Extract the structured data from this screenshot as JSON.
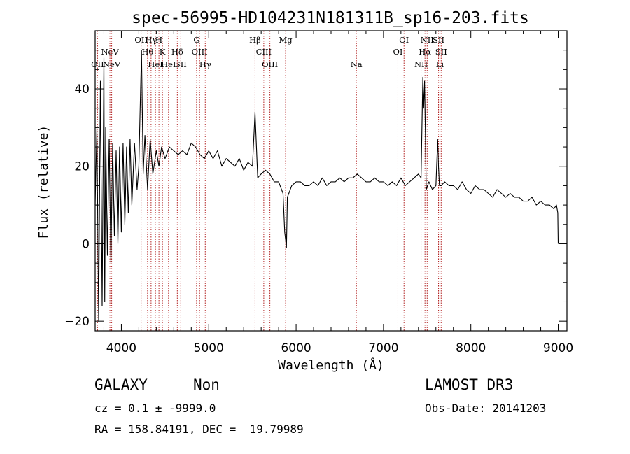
{
  "chart_data": {
    "type": "line",
    "title": "spec-56995-HD104231N181311B_sp16-203.fits",
    "xlabel": "Wavelength (Å)",
    "ylabel": "Flux (relative)",
    "xlim": [
      3700,
      9100
    ],
    "ylim": [
      -22.5,
      55
    ],
    "xticks": [
      4000,
      5000,
      6000,
      7000,
      8000,
      9000
    ],
    "yticks": [
      -20,
      0,
      20,
      40
    ],
    "grid": false,
    "series": [
      {
        "color": "#000000",
        "x": [
          3700,
          3720,
          3740,
          3760,
          3780,
          3800,
          3810,
          3820,
          3840,
          3860,
          3880,
          3900,
          3920,
          3940,
          3960,
          3980,
          4000,
          4020,
          4040,
          4060,
          4080,
          4100,
          4120,
          4150,
          4180,
          4200,
          4230,
          4250,
          4270,
          4300,
          4330,
          4360,
          4400,
          4430,
          4460,
          4500,
          4550,
          4600,
          4650,
          4700,
          4750,
          4800,
          4850,
          4900,
          4950,
          5000,
          5050,
          5100,
          5150,
          5200,
          5250,
          5300,
          5350,
          5400,
          5450,
          5500,
          5530,
          5560,
          5600,
          5650,
          5700,
          5750,
          5800,
          5850,
          5870,
          5885,
          5890,
          5900,
          5950,
          6000,
          6050,
          6100,
          6150,
          6200,
          6250,
          6300,
          6350,
          6400,
          6450,
          6500,
          6550,
          6600,
          6650,
          6700,
          6750,
          6800,
          6850,
          6900,
          6950,
          7000,
          7050,
          7100,
          7150,
          7200,
          7250,
          7300,
          7350,
          7400,
          7430,
          7450,
          7460,
          7470,
          7490,
          7520,
          7560,
          7600,
          7620,
          7630,
          7640,
          7660,
          7700,
          7750,
          7800,
          7850,
          7900,
          7950,
          8000,
          8050,
          8100,
          8150,
          8200,
          8250,
          8300,
          8350,
          8400,
          8450,
          8500,
          8550,
          8600,
          8650,
          8700,
          8750,
          8800,
          8850,
          8900,
          8950,
          8980,
          8995,
          9000
        ],
        "y": [
          10,
          30,
          -20,
          42,
          -16,
          48,
          -15,
          30,
          -3,
          27,
          -5,
          26,
          2,
          24,
          0,
          25,
          3,
          26,
          5,
          25,
          8,
          27,
          10,
          26,
          14,
          20,
          50,
          18,
          28,
          14,
          27,
          18,
          24,
          20,
          25,
          22,
          25,
          24,
          23,
          24,
          23,
          26,
          25,
          23,
          22,
          24,
          22,
          24,
          20,
          22,
          21,
          20,
          22,
          19,
          21,
          20,
          34,
          17,
          18,
          19,
          18,
          16,
          16,
          13,
          3,
          0,
          -1,
          12,
          15,
          16,
          16,
          15,
          15,
          16,
          15,
          17,
          15,
          16,
          16,
          17,
          16,
          17,
          17,
          18,
          17,
          16,
          16,
          17,
          16,
          16,
          15,
          16,
          15,
          17,
          15,
          16,
          17,
          18,
          17,
          43,
          35,
          42,
          14,
          16,
          14,
          15,
          27,
          20,
          15,
          15,
          16,
          15,
          15,
          14,
          16,
          14,
          13,
          15,
          14,
          14,
          13,
          12,
          14,
          13,
          12,
          13,
          12,
          12,
          11,
          11,
          12,
          10,
          11,
          10,
          10,
          9,
          10,
          8,
          0
        ]
      }
    ],
    "line_markers": [
      {
        "wavelength": 3727,
        "label": "OII",
        "row": 3
      },
      {
        "wavelength": 3869,
        "label": "NeV",
        "row": 2
      },
      {
        "wavelength": 3889,
        "label": "NeV",
        "row": 3
      },
      {
        "wavelength": 4226,
        "label": "OII",
        "row": 1
      },
      {
        "wavelength": 4300,
        "label": "Hθ",
        "row": 2
      },
      {
        "wavelength": 4340,
        "label": "Hγ",
        "row": 1
      },
      {
        "wavelength": 4390,
        "label": "HeI",
        "row": 3
      },
      {
        "wavelength": 4430,
        "label": "H",
        "row": 1
      },
      {
        "wavelength": 4470,
        "label": "K",
        "row": 2
      },
      {
        "wavelength": 4540,
        "label": "HeI",
        "row": 3
      },
      {
        "wavelength": 4640,
        "label": "Hδ",
        "row": 2
      },
      {
        "wavelength": 4680,
        "label": "SII",
        "row": 3
      },
      {
        "wavelength": 4861,
        "label": "G",
        "row": 1
      },
      {
        "wavelength": 4895,
        "label": "OIII",
        "row": 2
      },
      {
        "wavelength": 4960,
        "label": "Hγ",
        "row": 3
      },
      {
        "wavelength": 5530,
        "label": "Hβ",
        "row": 1
      },
      {
        "wavelength": 5630,
        "label": "CIII",
        "row": 2
      },
      {
        "wavelength": 5700,
        "label": "OIII",
        "row": 3
      },
      {
        "wavelength": 5880,
        "label": "Mg",
        "row": 1
      },
      {
        "wavelength": 6690,
        "label": "Na",
        "row": 3
      },
      {
        "wavelength": 7165,
        "label": "OI",
        "row": 2
      },
      {
        "wavelength": 7235,
        "label": "OI",
        "row": 1
      },
      {
        "wavelength": 7430,
        "label": "NII",
        "row": 3
      },
      {
        "wavelength": 7475,
        "label": "Hα",
        "row": 2
      },
      {
        "wavelength": 7500,
        "label": "NII",
        "row": 1
      },
      {
        "wavelength": 7630,
        "label": "SII",
        "row": 1
      },
      {
        "wavelength": 7645,
        "label": "Li",
        "row": 3
      },
      {
        "wavelength": 7660,
        "label": "SII",
        "row": 2
      }
    ]
  },
  "info": {
    "class_label": "GALAXY",
    "subclass_label": "Non",
    "survey": "LAMOST DR3",
    "cz_line": "cz = 0.1 ± -9999.0",
    "obs_date": "Obs-Date: 20141203",
    "coords": "RA = 158.84191, DEC =  19.79989"
  }
}
